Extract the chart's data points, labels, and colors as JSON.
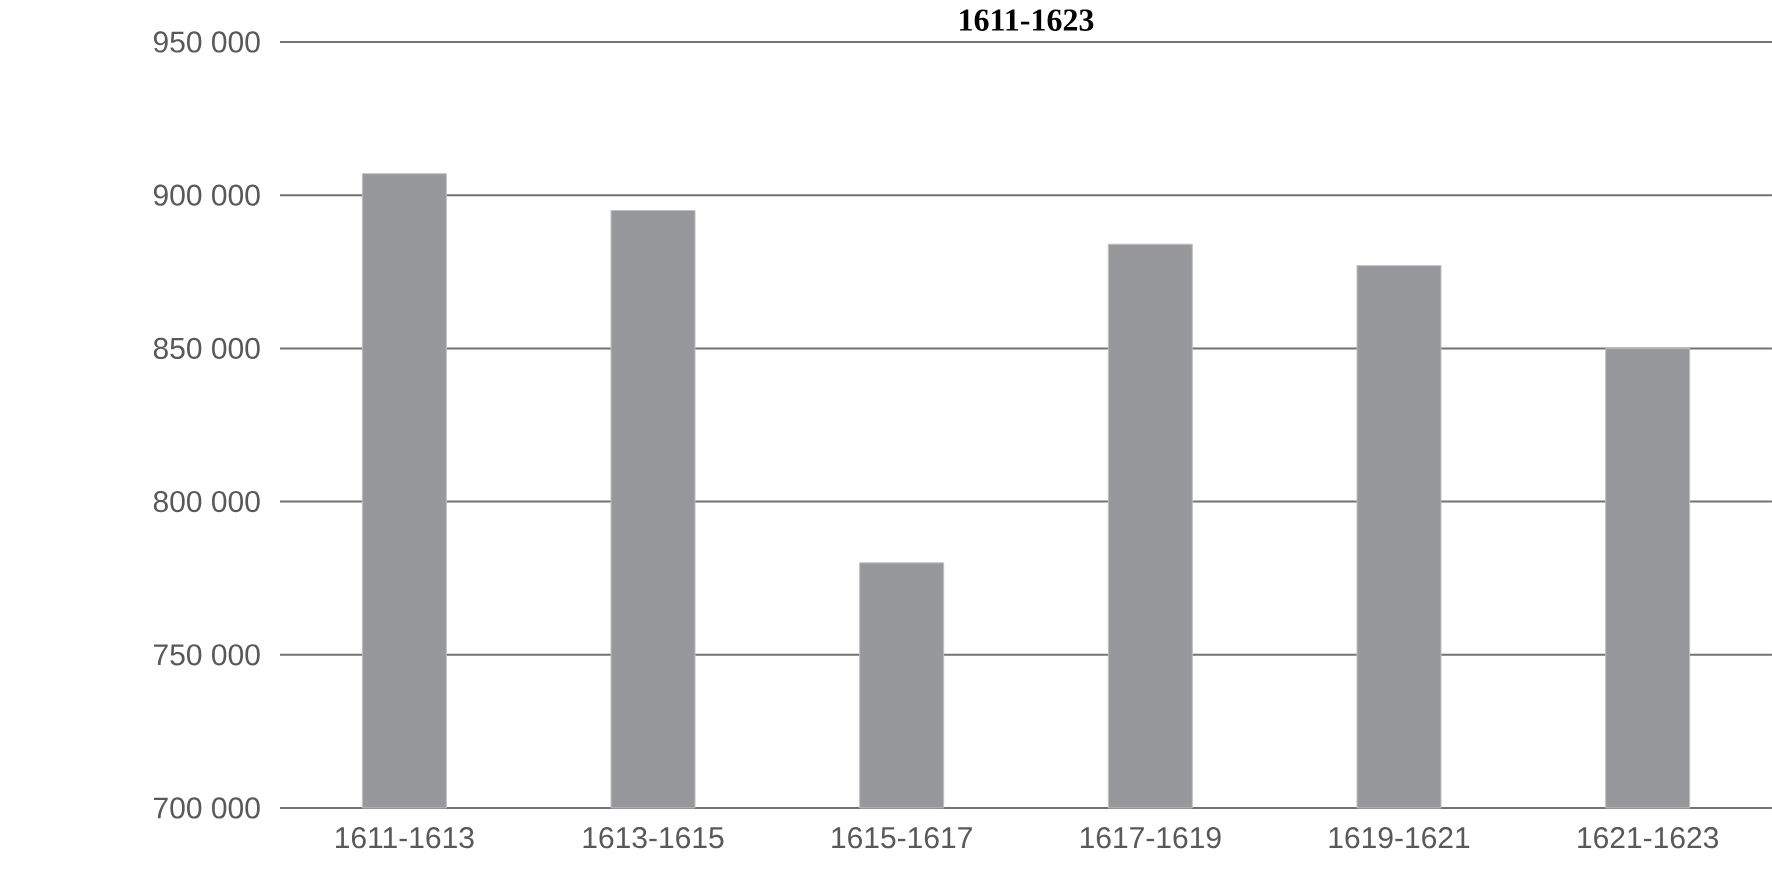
{
  "chart_data": {
    "type": "bar",
    "title": "1611-1623",
    "categories": [
      "1611-1613",
      "1613-1615",
      "1615-1617",
      "1617-1619",
      "1619-1621",
      "1621-1623"
    ],
    "values": [
      907000,
      895000,
      780000,
      884000,
      877000,
      850000
    ],
    "color": "#97989c",
    "ylim": [
      700000,
      950000
    ],
    "yticks": [
      {
        "value": 700000,
        "label": "700 000"
      },
      {
        "value": 750000,
        "label": "750 000"
      },
      {
        "value": 800000,
        "label": "800 000"
      },
      {
        "value": 850000,
        "label": "850 000"
      },
      {
        "value": 900000,
        "label": "900 000"
      },
      {
        "value": 950000,
        "label": "950 000"
      }
    ],
    "grid": "y"
  }
}
